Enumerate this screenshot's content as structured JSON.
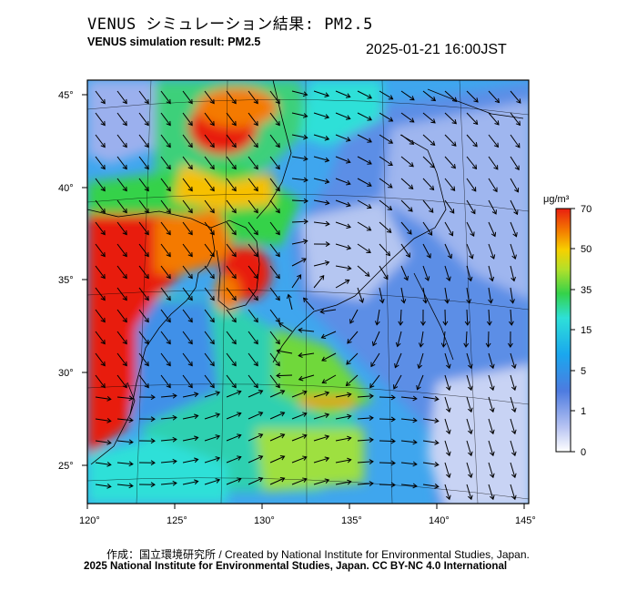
{
  "header": {
    "title_jp": "VENUS シミュレーション結果: PM2.5",
    "title_en": "VENUS simulation result: PM2.5",
    "timestamp": "2025-01-21 16:00JST"
  },
  "map": {
    "variable": "PM2.5",
    "region": "East Asia / Japan",
    "lon_ticks": [
      "120°",
      "125°",
      "130°",
      "135°",
      "140°",
      "145°"
    ],
    "lat_ticks": [
      "25°",
      "30°",
      "35°",
      "40°",
      "45°"
    ],
    "vector_field": "wind-arrows"
  },
  "colorbar": {
    "unit": "μg/m³",
    "tick_labels": [
      "70",
      "50",
      "35",
      "15",
      "5",
      "1",
      "0"
    ],
    "colors": [
      "#f7f7ff",
      "#b8c4f2",
      "#4d7be0",
      "#1aa7ee",
      "#2ee0d8",
      "#34d24a",
      "#b2e02a",
      "#f7d000",
      "#f47a00",
      "#e81e10"
    ]
  },
  "footer": {
    "credit": "作成：国立環境研究所 / Created by National Institute for Environmental Studies, Japan.",
    "license": "2025 National Institute for Environmental Studies, Japan. CC BY-NC 4.0 International"
  }
}
